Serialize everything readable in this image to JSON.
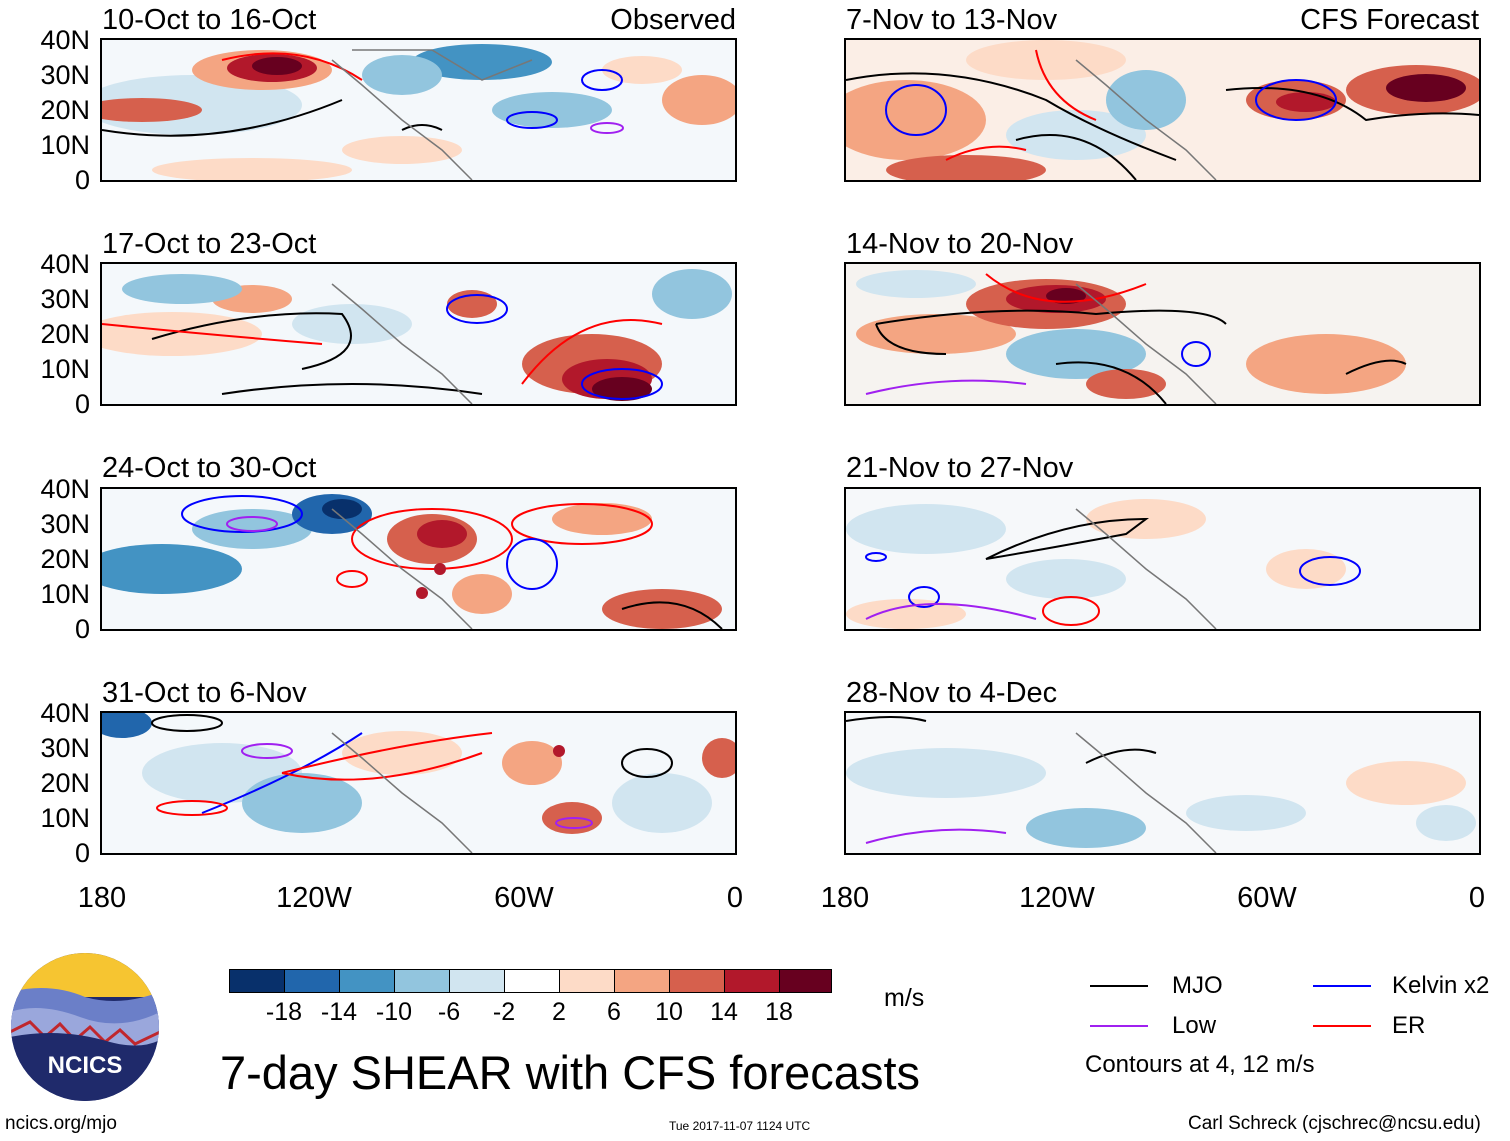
{
  "panels": {
    "left": [
      {
        "title": "10-Oct to 16-Oct",
        "tag": "Observed"
      },
      {
        "title": "17-Oct to 23-Oct",
        "tag": ""
      },
      {
        "title": "24-Oct to 30-Oct",
        "tag": ""
      },
      {
        "title": "31-Oct to 6-Nov",
        "tag": ""
      }
    ],
    "right": [
      {
        "title": "7-Nov to 13-Nov",
        "tag": "CFS Forecast"
      },
      {
        "title": "14-Nov to 20-Nov",
        "tag": ""
      },
      {
        "title": "21-Nov to 27-Nov",
        "tag": ""
      },
      {
        "title": "28-Nov to 4-Dec",
        "tag": ""
      }
    ]
  },
  "lat_labels": [
    "40N",
    "30N",
    "20N",
    "10N",
    "0"
  ],
  "lon_labels": [
    "180",
    "120W",
    "60W",
    "0"
  ],
  "colorbar": {
    "colors": [
      "#08306b",
      "#2166ac",
      "#4393c3",
      "#92c5de",
      "#d1e5f0",
      "#ffffff",
      "#fddbc7",
      "#f4a582",
      "#d6604d",
      "#b2182b",
      "#67001f"
    ],
    "labels": [
      "-18",
      "-14",
      "-10",
      "-6",
      "-2",
      "2",
      "6",
      "10",
      "14",
      "18"
    ],
    "unit": "m/s"
  },
  "legend": {
    "items": [
      {
        "label": "MJO",
        "color": "#000000"
      },
      {
        "label": "Kelvin x2",
        "color": "#0000ff"
      },
      {
        "label": "Low",
        "color": "#a020f0"
      },
      {
        "label": "ER",
        "color": "#ff0000"
      }
    ],
    "note": "Contours at 4, 12 m/s"
  },
  "title": "7-day SHEAR with CFS forecasts",
  "logo_text": "NCICS",
  "footer": {
    "url": "ncics.org/mjo",
    "timestamp": "Tue 2017-11-07 1124 UTC",
    "credit": "Carl Schreck (cjschrec@ncsu.edu)"
  }
}
